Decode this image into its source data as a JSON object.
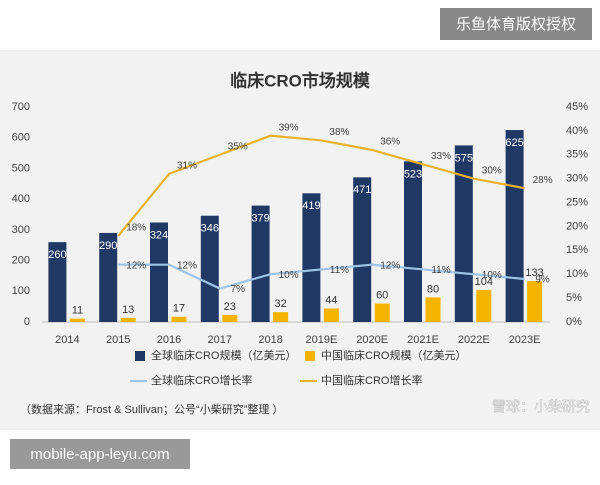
{
  "header": {
    "badge": "乐鱼体育版权授权"
  },
  "footer": {
    "url": "mobile-app-leyu.com",
    "watermark": "雪球：小柴研究"
  },
  "chart_data": {
    "type": "bar",
    "title": "临床CRO市场规模",
    "note": "（数据来源：Frost & Sullivan；公号“小柴研究”整理 ）",
    "categories": [
      "2014",
      "2015",
      "2016",
      "2017",
      "2018",
      "2019E",
      "2020E",
      "2021E",
      "2022E",
      "2023E"
    ],
    "ylim": [
      0,
      700
    ],
    "yticks": [
      0,
      100,
      200,
      300,
      400,
      500,
      600,
      700
    ],
    "y2lim": [
      0,
      45
    ],
    "y2ticks": [
      {
        "value": 0,
        "label": "0%"
      },
      {
        "value": 5,
        "label": "5%"
      },
      {
        "value": 10,
        "label": "10%"
      },
      {
        "value": 15,
        "label": "15%"
      },
      {
        "value": 20,
        "label": "20%"
      },
      {
        "value": 25,
        "label": "25%"
      },
      {
        "value": 30,
        "label": "30%"
      },
      {
        "value": 35,
        "label": "35%"
      },
      {
        "value": 40,
        "label": "40%"
      },
      {
        "value": 45,
        "label": "45%"
      }
    ],
    "grid": false,
    "series": [
      {
        "name": "全球临床CRO规模（亿美元）",
        "type": "bar",
        "color": "#203864",
        "values": [
          260,
          290,
          324,
          346,
          379,
          419,
          471,
          523,
          575,
          625
        ]
      },
      {
        "name": "中国临床CRO规模（亿美元）",
        "type": "bar",
        "color": "#f5b400",
        "values": [
          11,
          13,
          17,
          23,
          32,
          44,
          60,
          80,
          104,
          133
        ]
      },
      {
        "name": "全球临床CRO增长率",
        "type": "line",
        "axis": "y2",
        "color": "#9dc3e6",
        "values": [
          null,
          12,
          12,
          7,
          10,
          11,
          12,
          11,
          10,
          9
        ],
        "value_labels": [
          null,
          "12%",
          "12%",
          "7%",
          "10%",
          "11%",
          "12%",
          "11%",
          "10%",
          "9%"
        ]
      },
      {
        "name": "中国临床CRO增长率",
        "type": "line",
        "axis": "y2",
        "color": "#e8b32b",
        "values": [
          null,
          18,
          31,
          35,
          39,
          38,
          36,
          33,
          30,
          28
        ],
        "value_labels": [
          null,
          "18%",
          "31%",
          "35%",
          "39%",
          "38%",
          "36%",
          "33%",
          "30%",
          "28%"
        ]
      }
    ]
  }
}
